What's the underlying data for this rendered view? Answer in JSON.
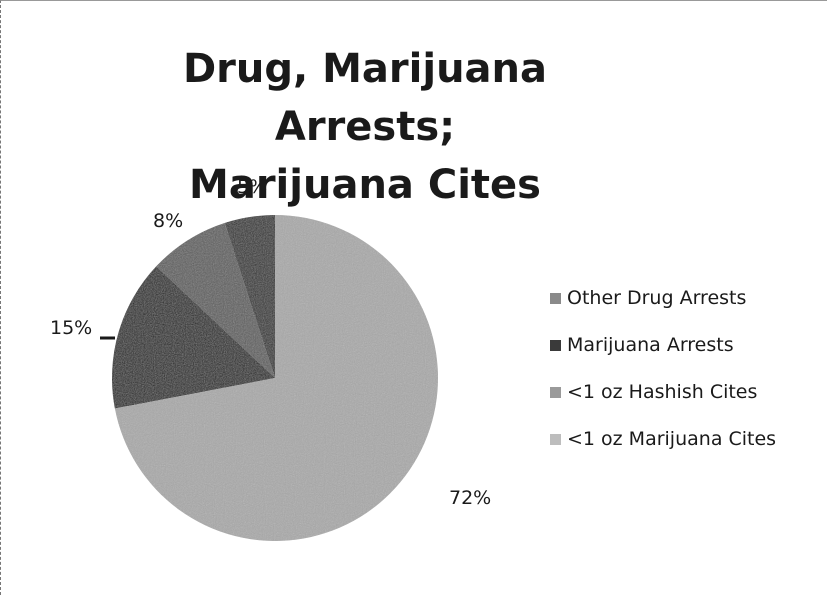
{
  "chart_data": {
    "type": "pie",
    "title": "Drug, Marijuana Arrests;",
    "subtitle": "Marijuana Cites",
    "slices": [
      {
        "label": "Other Drug Arrests",
        "value": 5,
        "value_label": "5%",
        "color": "#2a2a2a"
      },
      {
        "label": "Marijuana Arrests",
        "value": 8,
        "value_label": "8%",
        "color": "#5c5c5c"
      },
      {
        "label": "<1 oz Hashish Cites",
        "value": 15,
        "value_label": "15%",
        "color": "#1e1e1e"
      },
      {
        "label": "<1 oz Marijuana Cites",
        "value": 72,
        "value_label": "72%",
        "color": "#a9a9a9"
      }
    ],
    "legend": {
      "position": "right",
      "items": [
        {
          "label": "Other Drug Arrests",
          "color": "#8a8a8a"
        },
        {
          "label": "Marijuana Arrests",
          "color": "#3a3a3a"
        },
        {
          "label": "<1 oz Hashish Cites",
          "color": "#9a9a9a"
        },
        {
          "label": "<1 oz Marijuana Cites",
          "color": "#bdbdbd"
        }
      ]
    }
  }
}
